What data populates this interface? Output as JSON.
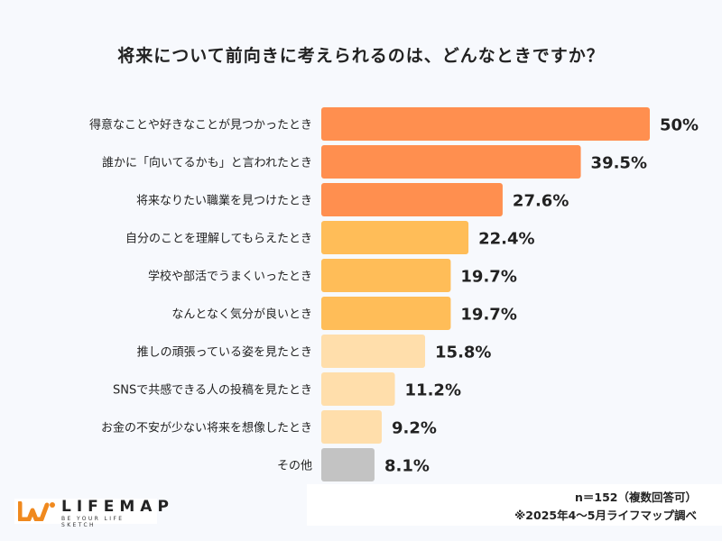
{
  "chart_data": {
    "type": "bar",
    "orientation": "horizontal",
    "title": "将来について前向きに考えられるのは、どんなときですか？",
    "categories": [
      "得意なことや好きなことが見つかったとき",
      "誰かに「向いてるかも」と言われたとき",
      "将来なりたい職業を見つけたとき",
      "自分のことを理解してもらえたとき",
      "学校や部活でうまくいったとき",
      "なんとなく気分が良いとき",
      "推しの頑張っている姿を見たとき",
      "SNSで共感できる人の投稿を見たとき",
      "お金の不安が少ない将来を想像したとき",
      "その他"
    ],
    "values": [
      50,
      39.5,
      27.6,
      22.4,
      19.7,
      19.7,
      15.8,
      11.2,
      9.2,
      8.1
    ],
    "value_labels": [
      "50%",
      "39.5%",
      "27.6%",
      "22.4%",
      "19.7%",
      "19.7%",
      "15.8%",
      "11.2%",
      "9.2%",
      "8.1%"
    ],
    "bar_colors": [
      "#ff8f4f",
      "#ff8f4f",
      "#ff8f4f",
      "#ffbd58",
      "#ffbd58",
      "#ffbd58",
      "#ffdeab",
      "#ffdeab",
      "#ffdeab",
      "#c3c3c3"
    ],
    "xlim": [
      0,
      50
    ],
    "grid": false,
    "legend": "none"
  },
  "footer": {
    "sample_note": "n＝152（複数回答可）",
    "source_note": "※2025年4～5月ライフマップ調べ"
  },
  "logo": {
    "name": "LIFEMAP",
    "tagline": "BE YOUR LIFE SKETCH",
    "color": "#f0891e"
  }
}
